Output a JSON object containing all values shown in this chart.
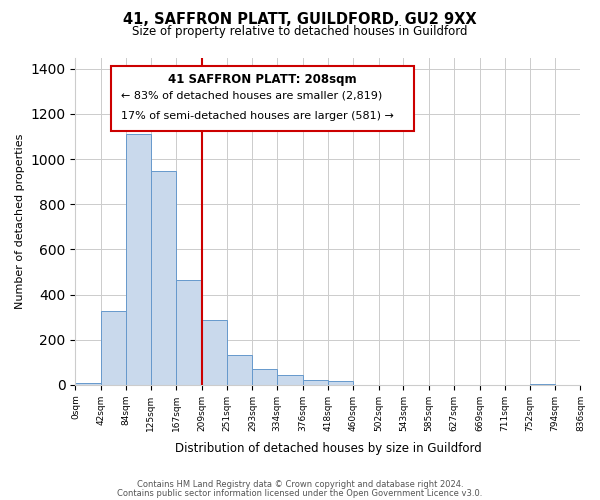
{
  "title": "41, SAFFRON PLATT, GUILDFORD, GU2 9XX",
  "subtitle": "Size of property relative to detached houses in Guildford",
  "xlabel": "Distribution of detached houses by size in Guildford",
  "ylabel": "Number of detached properties",
  "bar_color": "#c9d9ec",
  "bar_edge_color": "#6699cc",
  "bar_heights": [
    10,
    325,
    1110,
    945,
    465,
    285,
    130,
    70,
    45,
    20,
    15,
    0,
    0,
    0,
    0,
    0,
    0,
    0,
    5,
    0
  ],
  "bin_edges": [
    0,
    42,
    84,
    125,
    167,
    209,
    251,
    293,
    334,
    376,
    418,
    460,
    502,
    543,
    585,
    627,
    669,
    711,
    752,
    794,
    836
  ],
  "bin_labels": [
    "0sqm",
    "42sqm",
    "84sqm",
    "125sqm",
    "167sqm",
    "209sqm",
    "251sqm",
    "293sqm",
    "334sqm",
    "376sqm",
    "418sqm",
    "460sqm",
    "502sqm",
    "543sqm",
    "585sqm",
    "627sqm",
    "669sqm",
    "711sqm",
    "752sqm",
    "794sqm",
    "836sqm"
  ],
  "ylim": [
    0,
    1450
  ],
  "yticks": [
    0,
    200,
    400,
    600,
    800,
    1000,
    1200,
    1400
  ],
  "annotation_title": "41 SAFFRON PLATT: 208sqm",
  "annotation_line1": "← 83% of detached houses are smaller (2,819)",
  "annotation_line2": "17% of semi-detached houses are larger (581) →",
  "annotation_box_color": "#ffffff",
  "annotation_box_edge_color": "#cc0000",
  "vline_position": 5,
  "vline_color": "#cc0000",
  "background_color": "#ffffff",
  "grid_color": "#cccccc",
  "footnote1": "Contains HM Land Registry data © Crown copyright and database right 2024.",
  "footnote2": "Contains public sector information licensed under the Open Government Licence v3.0."
}
